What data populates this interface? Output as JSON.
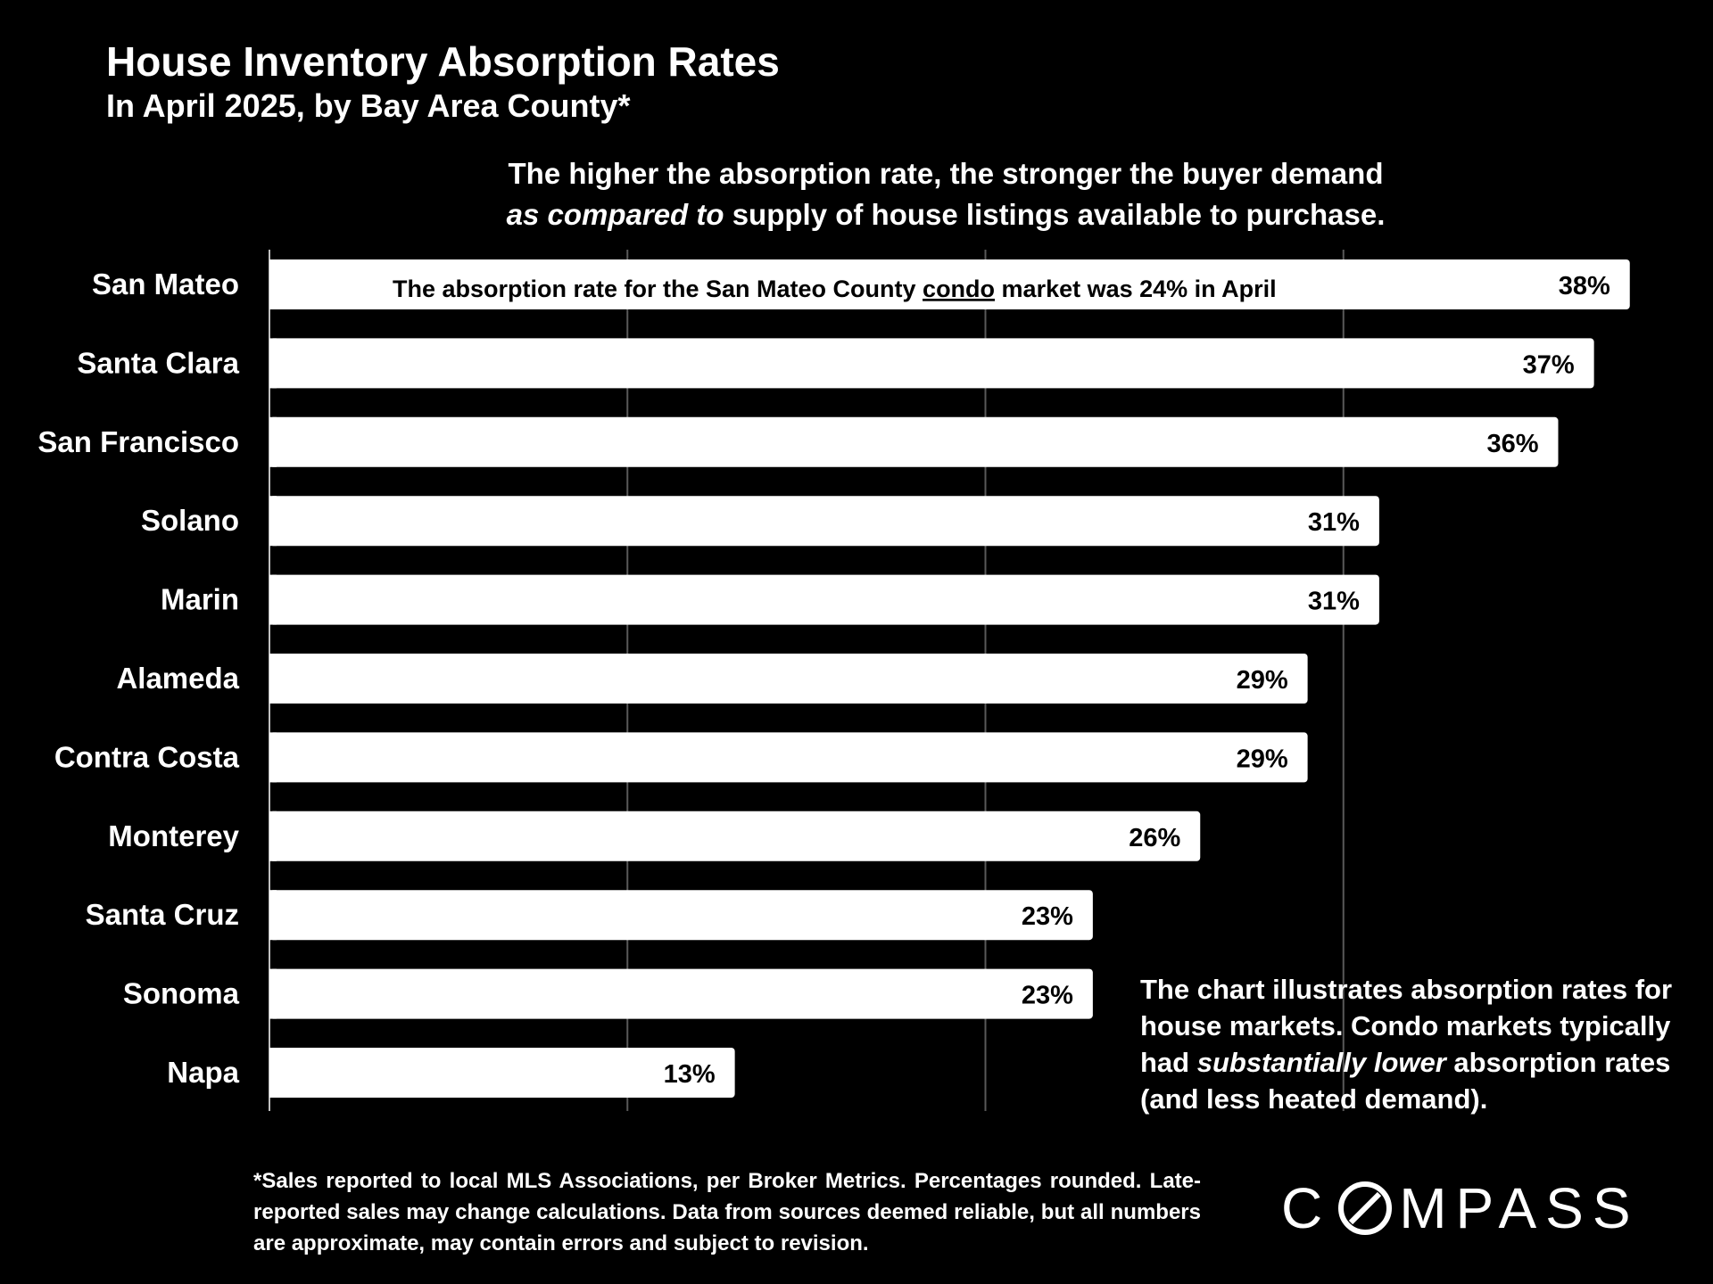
{
  "title": "House Inventory Absorption Rates",
  "subtitle": "In April 2025, by Bay Area County*",
  "explanation": {
    "line1": "The higher the absorption rate, the stronger the buyer demand",
    "line2_italic": "as compared to",
    "line2_rest": " supply of house listings available to purchase."
  },
  "annotation": {
    "before": "The absorption rate for the San Mateo County ",
    "underlined": "condo",
    "after": " market was 24% in April"
  },
  "side_note": {
    "part1": "The chart illustrates absorption rates for house markets. Condo markets typically had ",
    "italic": "substantially lower",
    "part2": " absorption rates (and less heated demand)."
  },
  "footnote": "*Sales reported to local MLS Associations, per Broker Metrics. Percentages rounded. Late-reported sales may change calculations. Data from sources deemed reliable, but all numbers are approximate, may contain errors and subject to revision.",
  "logo": {
    "before": "C",
    "after": "MPASS"
  },
  "colors": {
    "background": "#000000",
    "bar": "#ffffff",
    "bar_label": "#000000",
    "text": "#ffffff",
    "gridline": "#595959"
  },
  "chart_data": {
    "type": "bar",
    "orientation": "horizontal",
    "categories": [
      "San Mateo",
      "Santa Clara",
      "San Francisco",
      "Solano",
      "Marin",
      "Alameda",
      "Contra Costa",
      "Monterey",
      "Santa Cruz",
      "Sonoma",
      "Napa"
    ],
    "values": [
      38,
      37,
      36,
      31,
      31,
      29,
      29,
      26,
      23,
      23,
      13
    ],
    "value_labels": [
      "38%",
      "37%",
      "36%",
      "31%",
      "31%",
      "29%",
      "29%",
      "26%",
      "23%",
      "23%",
      "13%"
    ],
    "unit": "%",
    "xlim": [
      0,
      40
    ],
    "grid": true,
    "gridline_values": [
      10,
      20,
      30
    ]
  }
}
